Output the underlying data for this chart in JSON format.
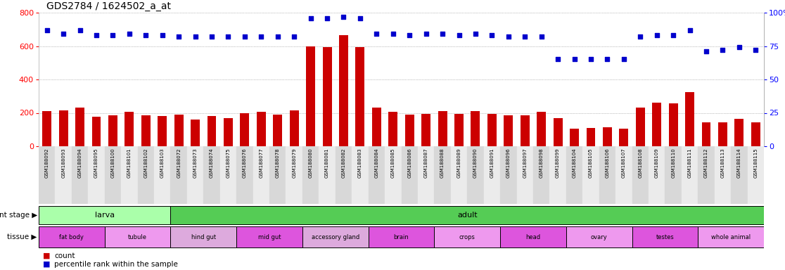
{
  "title": "GDS2784 / 1624502_a_at",
  "samples": [
    "GSM188092",
    "GSM188093",
    "GSM188094",
    "GSM188095",
    "GSM188100",
    "GSM188101",
    "GSM188102",
    "GSM188103",
    "GSM188072",
    "GSM188073",
    "GSM188074",
    "GSM188075",
    "GSM188076",
    "GSM188077",
    "GSM188078",
    "GSM188079",
    "GSM188080",
    "GSM188081",
    "GSM188082",
    "GSM188083",
    "GSM188084",
    "GSM188085",
    "GSM188086",
    "GSM188087",
    "GSM188088",
    "GSM188089",
    "GSM188090",
    "GSM188091",
    "GSM188096",
    "GSM188097",
    "GSM188098",
    "GSM188099",
    "GSM188104",
    "GSM188105",
    "GSM188106",
    "GSM188107",
    "GSM188108",
    "GSM188109",
    "GSM188110",
    "GSM188111",
    "GSM188112",
    "GSM188113",
    "GSM188114",
    "GSM188115"
  ],
  "count_values": [
    210,
    215,
    230,
    175,
    185,
    205,
    185,
    180,
    190,
    160,
    180,
    170,
    200,
    205,
    190,
    215,
    600,
    595,
    665,
    595,
    230,
    205,
    190,
    195,
    210,
    195,
    210,
    195,
    185,
    185,
    205,
    170,
    105,
    110,
    115,
    105,
    230,
    260,
    255,
    325,
    145,
    145,
    165,
    145
  ],
  "percentile_values": [
    87,
    84,
    87,
    83,
    83,
    84,
    83,
    83,
    82,
    82,
    82,
    82,
    82,
    82,
    82,
    82,
    96,
    96,
    97,
    96,
    84,
    84,
    83,
    84,
    84,
    83,
    84,
    83,
    82,
    82,
    82,
    65,
    65,
    65,
    65,
    65,
    82,
    83,
    83,
    87,
    71,
    72,
    74,
    72
  ],
  "ylim_left": [
    0,
    800
  ],
  "ylim_right": [
    0,
    100
  ],
  "yticks_left": [
    0,
    200,
    400,
    600,
    800
  ],
  "yticks_right": [
    0,
    25,
    50,
    75,
    100
  ],
  "ytick_labels_right": [
    "0",
    "25",
    "50",
    "75",
    "100%"
  ],
  "bar_color": "#cc0000",
  "dot_color": "#0000cc",
  "development_stages": [
    {
      "label": "larva",
      "start": 0,
      "end": 8,
      "color": "#aaffaa"
    },
    {
      "label": "adult",
      "start": 8,
      "end": 44,
      "color": "#55cc55"
    }
  ],
  "tissues": [
    {
      "label": "fat body",
      "start": 0,
      "end": 4,
      "color": "#dd55dd"
    },
    {
      "label": "tubule",
      "start": 4,
      "end": 8,
      "color": "#ee99ee"
    },
    {
      "label": "hind gut",
      "start": 8,
      "end": 12,
      "color": "#ddaadd"
    },
    {
      "label": "mid gut",
      "start": 12,
      "end": 16,
      "color": "#dd55dd"
    },
    {
      "label": "accessory gland",
      "start": 16,
      "end": 20,
      "color": "#ddaadd"
    },
    {
      "label": "brain",
      "start": 20,
      "end": 24,
      "color": "#dd55dd"
    },
    {
      "label": "crops",
      "start": 24,
      "end": 28,
      "color": "#ee99ee"
    },
    {
      "label": "head",
      "start": 28,
      "end": 32,
      "color": "#dd55dd"
    },
    {
      "label": "ovary",
      "start": 32,
      "end": 36,
      "color": "#ee99ee"
    },
    {
      "label": "testes",
      "start": 36,
      "end": 40,
      "color": "#dd55dd"
    },
    {
      "label": "whole animal",
      "start": 40,
      "end": 44,
      "color": "#ee99ee"
    }
  ],
  "background_color": "#ffffff",
  "grid_color": "#888888"
}
